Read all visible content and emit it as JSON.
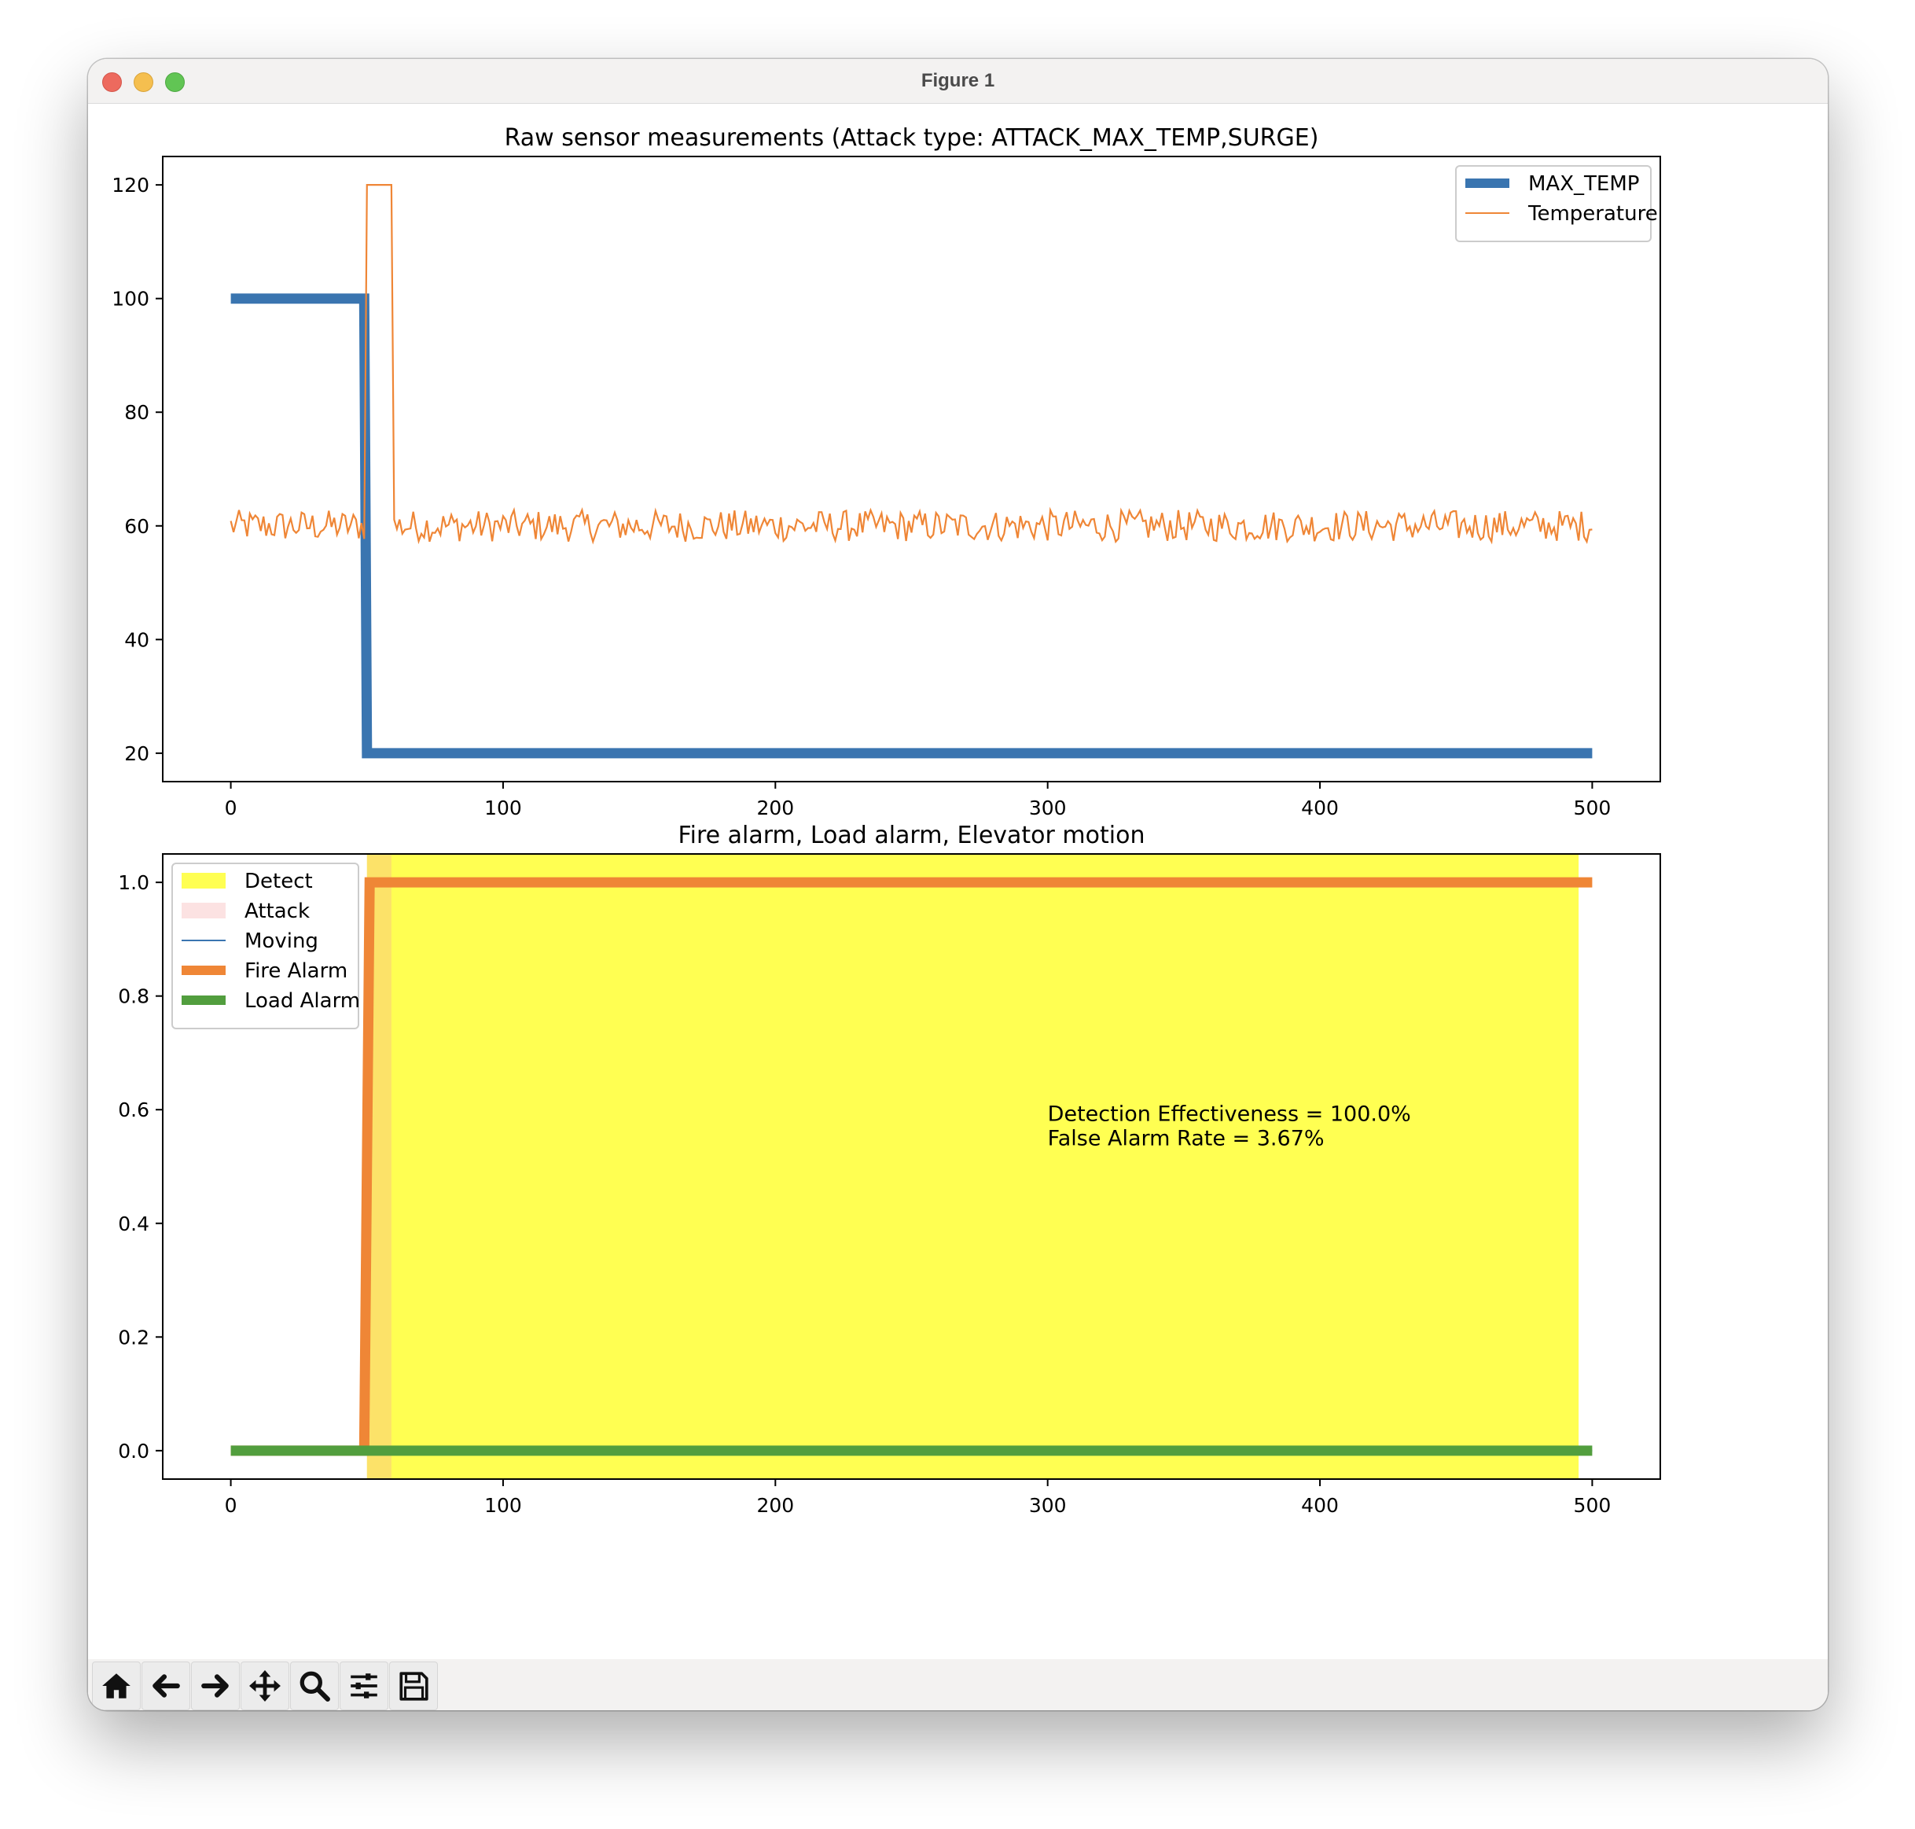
{
  "window": {
    "title": "Figure 1"
  },
  "toolbar": {
    "buttons": [
      {
        "name": "home-button",
        "icon": "home-icon"
      },
      {
        "name": "back-button",
        "icon": "arrow-left-icon"
      },
      {
        "name": "forward-button",
        "icon": "arrow-right-icon"
      },
      {
        "name": "pan-button",
        "icon": "move-icon"
      },
      {
        "name": "zoom-button",
        "icon": "magnifier-icon"
      },
      {
        "name": "configure-subplots-button",
        "icon": "sliders-icon"
      },
      {
        "name": "save-button",
        "icon": "floppy-disk-icon"
      }
    ]
  },
  "chart_data": [
    {
      "type": "line",
      "title": "Raw sensor measurements (Attack type: ATTACK_MAX_TEMP,SURGE)",
      "xlabel": "",
      "ylabel": "",
      "xlim": [
        -25,
        525
      ],
      "ylim": [
        15,
        125
      ],
      "xticks": [
        0,
        100,
        200,
        300,
        400,
        500
      ],
      "yticks": [
        20,
        40,
        60,
        80,
        100,
        120
      ],
      "legend_position": "top-right",
      "series": [
        {
          "name": "MAX_TEMP",
          "color": "#3a75b0",
          "style": "thick",
          "x": [
            0,
            49,
            50,
            500
          ],
          "y": [
            100,
            100,
            20,
            20
          ]
        },
        {
          "name": "Temperature",
          "color": "#ef8636",
          "style": "thin",
          "x": [
            0,
            49,
            50,
            59,
            60,
            500
          ],
          "y": [
            60.5,
            60,
            120,
            120,
            60,
            60.3
          ],
          "noise": "fluctuates between about 57 and 63 except during 50-59"
        }
      ]
    },
    {
      "type": "line",
      "title": "Fire alarm, Load alarm, Elevator motion",
      "xlabel": "",
      "ylabel": "",
      "xlim": [
        -25,
        525
      ],
      "ylim": [
        -0.05,
        1.05
      ],
      "xticks": [
        0,
        100,
        200,
        300,
        400,
        500
      ],
      "yticks": [
        0.0,
        0.2,
        0.4,
        0.6,
        0.8,
        1.0
      ],
      "yticklabels": [
        "0.0",
        "0.2",
        "0.4",
        "0.6",
        "0.8",
        "1.0"
      ],
      "legend_position": "top-left",
      "spans": [
        {
          "name": "Detect",
          "color": "#ffff00",
          "alpha": 0.68,
          "x0": 50,
          "x1": 495
        },
        {
          "name": "Attack",
          "color": "#f4a0a0",
          "alpha": 0.3,
          "x0": 50,
          "x1": 59
        }
      ],
      "series": [
        {
          "name": "Moving",
          "color": "#3a75b0",
          "style": "thin",
          "x": [
            0,
            500
          ],
          "y": [
            0,
            0
          ]
        },
        {
          "name": "Fire Alarm",
          "color": "#ef8636",
          "style": "thick",
          "x": [
            0,
            49,
            51,
            500
          ],
          "y": [
            0,
            0,
            1,
            1
          ]
        },
        {
          "name": "Load Alarm",
          "color": "#529e3e",
          "style": "thick",
          "x": [
            0,
            500
          ],
          "y": [
            0,
            0
          ]
        }
      ],
      "annotation": {
        "x": 300,
        "y": 0.58,
        "lines": [
          "Detection Effectiveness = 100.0%",
          "False Alarm Rate = 3.67%"
        ]
      }
    }
  ]
}
